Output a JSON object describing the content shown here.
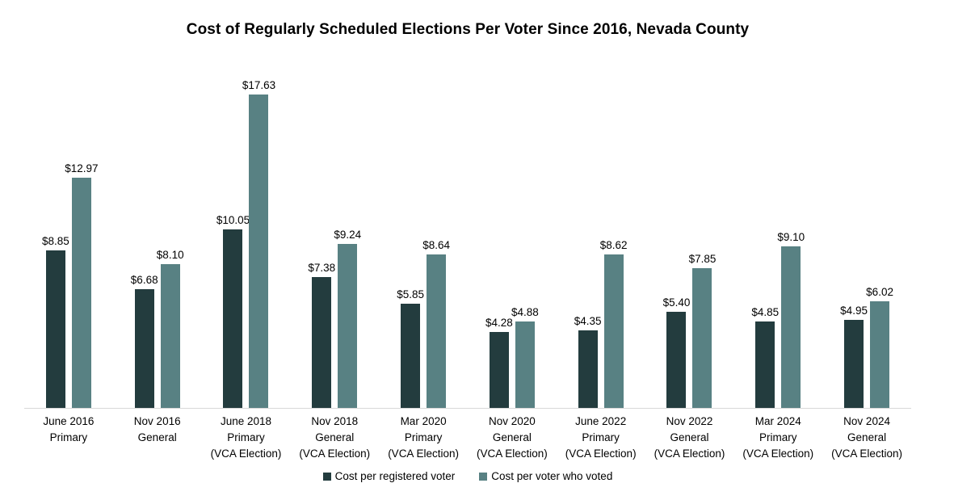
{
  "chart_data": {
    "type": "bar",
    "title": "Cost of Regularly Scheduled Elections Per Voter Since 2016, Nevada County",
    "xlabel": "",
    "ylabel": "",
    "ylim": [
      0,
      18
    ],
    "grid": false,
    "legend_position": "bottom",
    "axis_line_color": "#d9d9d9",
    "background_color": "#ffffff",
    "categories": [
      [
        "June 2016",
        "Primary"
      ],
      [
        "Nov 2016",
        "General"
      ],
      [
        "June 2018",
        "Primary",
        "(VCA Election)"
      ],
      [
        "Nov 2018",
        "General",
        "(VCA Election)"
      ],
      [
        "Mar 2020",
        "Primary",
        "(VCA Election)"
      ],
      [
        "Nov 2020",
        "General",
        "(VCA Election)"
      ],
      [
        "June 2022",
        "Primary",
        "(VCA Election)"
      ],
      [
        "Nov 2022",
        "General",
        "(VCA Election)"
      ],
      [
        "Mar 2024",
        "Primary",
        "(VCA Election)"
      ],
      [
        "Nov 2024",
        "General",
        "(VCA Election)"
      ]
    ],
    "series": [
      {
        "name": "Cost per registered voter",
        "color": "#233c3e",
        "values": [
          8.85,
          6.68,
          10.05,
          7.38,
          5.85,
          4.28,
          4.35,
          5.4,
          4.85,
          4.95
        ],
        "labels": [
          "$8.85",
          "$6.68",
          "$10.05",
          "$7.38",
          "$5.85",
          "$4.28",
          "$4.35",
          "$5.40",
          "$4.85",
          "$4.95"
        ]
      },
      {
        "name": "Cost per voter who voted",
        "color": "#588183",
        "values": [
          12.97,
          8.1,
          17.63,
          9.24,
          8.64,
          4.88,
          8.62,
          7.85,
          9.1,
          6.02
        ],
        "labels": [
          "$12.97",
          "$8.10",
          "$17.63",
          "$9.24",
          "$8.64",
          "$4.88",
          "$8.62",
          "$7.85",
          "$9.10",
          "$6.02"
        ]
      }
    ]
  }
}
